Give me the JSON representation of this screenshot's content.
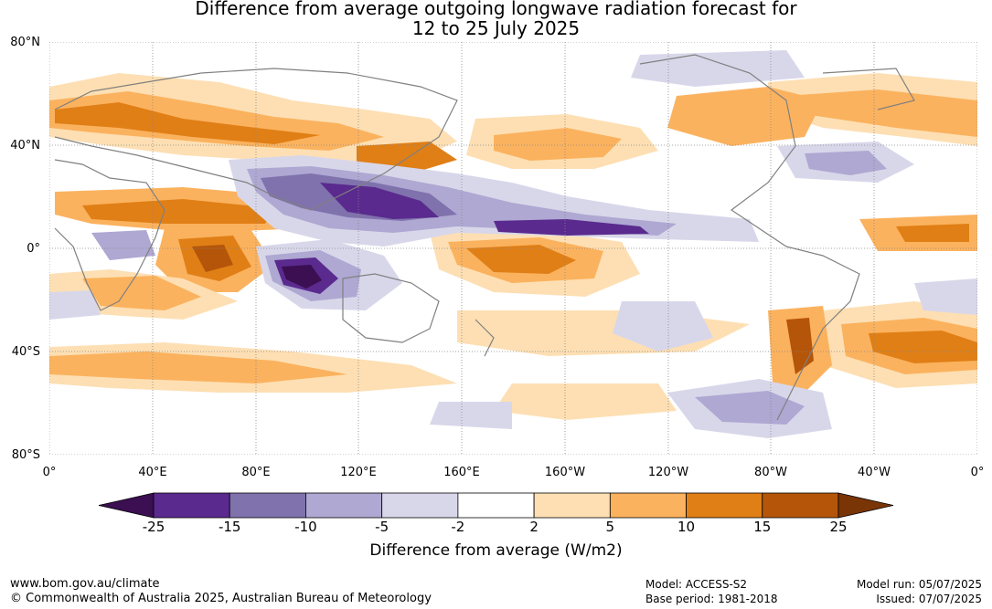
{
  "title_line1": "Difference from average outgoing longwave radiation forecast for",
  "title_line2": "12 to 25 July 2025",
  "lat_labels": [
    "80°N",
    "40°N",
    "0°",
    "40°S",
    "80°S"
  ],
  "lon_labels": [
    "0°",
    "40°E",
    "80°E",
    "120°E",
    "160°E",
    "160°W",
    "120°W",
    "80°W",
    "40°W",
    "0°"
  ],
  "colorbar": {
    "ticks": [
      "-25",
      "-15",
      "-10",
      "-5",
      "-2",
      "2",
      "5",
      "10",
      "15",
      "25"
    ],
    "colors": [
      "#3b0f52",
      "#5a2a8e",
      "#8072ad",
      "#aea8d2",
      "#d8d7ea",
      "#ffffff",
      "#fddfb3",
      "#fbb25e",
      "#e07f16",
      "#b55509",
      "#7a3507"
    ],
    "label": "Difference from average (W/m2)"
  },
  "footer": {
    "website": "www.bom.gov.au/climate",
    "copyright": "© Commonwealth of Australia 2025, Australian Bureau of Meteorology",
    "model": "Model: ACCESS-S2",
    "base_period": "Base period: 1981-2018",
    "model_run": "Model run: 05/07/2025",
    "issued": "Issued: 07/07/2025"
  }
}
